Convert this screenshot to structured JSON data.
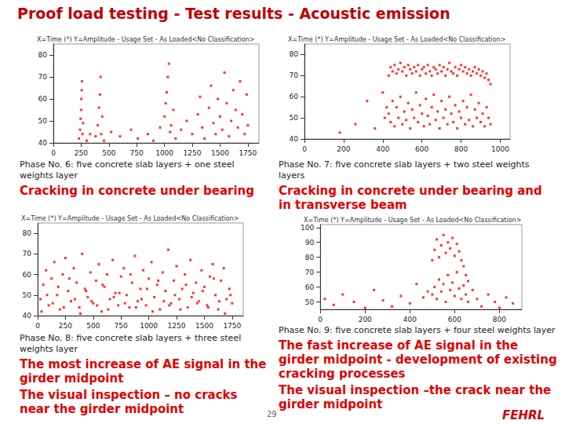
{
  "title": "Proof load testing - Test results - Acoustic emission",
  "page": "29",
  "logo": "FEHRL",
  "chart_data": [
    {
      "type": "scatter",
      "title": "X=Time (*) Y=Amplitude - Usage Set - As Loaded<No Classification>",
      "subtitle": "Phase No. 6: five concrete slab layers + one steel weights layer",
      "annotations": [
        "Cracking in concrete under bearing"
      ],
      "x": [
        230,
        240,
        245,
        250,
        252,
        255,
        258,
        262,
        268,
        300,
        330,
        380,
        400,
        410,
        420,
        425,
        430,
        440,
        455,
        520,
        600,
        700,
        760,
        850,
        900,
        960,
        1000,
        1010,
        1020,
        1030,
        1040,
        1050,
        1060,
        1080,
        1100,
        1150,
        1200,
        1250,
        1300,
        1320,
        1340,
        1360,
        1400,
        1420,
        1440,
        1460,
        1480,
        1500,
        1520,
        1540,
        1560,
        1580,
        1600,
        1620,
        1640,
        1660,
        1680,
        1700,
        1720,
        1740,
        1750
      ],
      "values": [
        42,
        46,
        51,
        55,
        60,
        64,
        68,
        44,
        49,
        41,
        44,
        43,
        48,
        56,
        62,
        70,
        44,
        52,
        41,
        45,
        43,
        46,
        42,
        44,
        41,
        47,
        52,
        58,
        63,
        70,
        76,
        45,
        48,
        55,
        42,
        46,
        50,
        44,
        53,
        61,
        47,
        42,
        56,
        66,
        49,
        44,
        60,
        52,
        46,
        72,
        58,
        43,
        50,
        64,
        55,
        47,
        68,
        53,
        44,
        62,
        48
      ],
      "color": "#ff0000",
      "marker": "square",
      "xlim": [
        0,
        1850
      ],
      "xticks": [
        0,
        250,
        500,
        750,
        1000,
        1250,
        1500,
        1750
      ],
      "ylim": [
        40,
        85
      ],
      "yticks": [
        40,
        50,
        60,
        70,
        80
      ],
      "grid": false
    },
    {
      "type": "scatter",
      "title": "X=Time (*) Y=Amplitude - Usage Set - As Loaded<No Classification>",
      "subtitle": "Phase No. 7: five concrete slab layers + two steel weights layers",
      "annotations": [
        "Cracking in concrete under bearing and in transverse beam"
      ],
      "x": [
        180,
        260,
        320,
        360,
        400,
        410,
        420,
        430,
        430,
        440,
        440,
        450,
        450,
        460,
        460,
        470,
        470,
        480,
        480,
        490,
        490,
        500,
        500,
        510,
        510,
        520,
        520,
        530,
        530,
        540,
        540,
        550,
        550,
        560,
        560,
        570,
        570,
        580,
        580,
        590,
        590,
        600,
        600,
        610,
        610,
        620,
        620,
        630,
        630,
        640,
        640,
        650,
        650,
        660,
        660,
        670,
        670,
        680,
        680,
        690,
        690,
        700,
        700,
        710,
        710,
        720,
        720,
        730,
        730,
        740,
        740,
        750,
        750,
        760,
        760,
        770,
        770,
        780,
        780,
        790,
        790,
        800,
        800,
        810,
        810,
        820,
        820,
        830,
        830,
        840,
        840,
        850,
        850,
        860,
        860,
        870,
        870,
        880,
        880,
        890,
        890,
        900,
        900,
        910,
        910,
        920,
        920,
        930,
        930,
        940,
        940,
        950,
        950
      ],
      "values": [
        43,
        47,
        58,
        45,
        62,
        50,
        55,
        70,
        52,
        74,
        48,
        72,
        58,
        75,
        46,
        71,
        55,
        73,
        50,
        76,
        60,
        72,
        47,
        74,
        53,
        70,
        49,
        75,
        57,
        73,
        45,
        71,
        54,
        74,
        50,
        72,
        62,
        75,
        48,
        70,
        56,
        73,
        52,
        74,
        46,
        71,
        59,
        75,
        51,
        72,
        47,
        70,
        55,
        74,
        61,
        73,
        49,
        71,
        53,
        75,
        45,
        72,
        58,
        74,
        50,
        70,
        54,
        73,
        47,
        76,
        60,
        72,
        52,
        71,
        48,
        74,
        56,
        70,
        45,
        73,
        53,
        75,
        50,
        72,
        58,
        74,
        47,
        71,
        55,
        73,
        49,
        70,
        61,
        72,
        46,
        74,
        54,
        71,
        50,
        73,
        57,
        70,
        48,
        72,
        52,
        69,
        46,
        71,
        55,
        68,
        50,
        66,
        47
      ],
      "color": "#ff0000",
      "marker": "square",
      "xlim": [
        0,
        1050
      ],
      "xticks": [
        0,
        200,
        400,
        600,
        800,
        1000
      ],
      "ylim": [
        40,
        85
      ],
      "yticks": [
        40,
        50,
        60,
        70,
        80
      ],
      "grid": false
    },
    {
      "type": "scatter",
      "title": "X=Time (*) Y=Amplitude - Usage Set - As Loaded<No Classification>",
      "subtitle": "Phase No. 8: five concrete slab layers + three  steel weights layer",
      "annotations": [
        "The most increase of AE signal in the girder midpoint",
        "The visual inspection – no cracks near the girder midpoint"
      ],
      "x": [
        25,
        50,
        75,
        100,
        125,
        150,
        175,
        200,
        225,
        250,
        275,
        300,
        325,
        350,
        375,
        400,
        425,
        450,
        475,
        500,
        525,
        550,
        575,
        600,
        625,
        650,
        675,
        700,
        725,
        750,
        775,
        800,
        825,
        850,
        875,
        900,
        925,
        950,
        975,
        1000,
        1025,
        1050,
        1075,
        1100,
        1125,
        1150,
        1175,
        1200,
        1225,
        1250,
        1275,
        1300,
        1325,
        1350,
        1375,
        1400,
        1425,
        1450,
        1475,
        1500,
        1525,
        1550,
        1575,
        1600,
        1625,
        1650,
        1675,
        1700,
        1725,
        1750,
        35,
        85,
        135,
        185,
        235,
        285,
        335,
        385,
        435,
        485,
        535,
        585,
        635,
        685,
        735,
        785,
        835,
        885,
        935,
        985,
        1035,
        1085,
        1135,
        1185,
        1235,
        1285,
        1335,
        1385,
        1435,
        1485,
        1535,
        1585,
        1635,
        1685,
        1735
      ],
      "values": [
        48,
        55,
        62,
        45,
        58,
        66,
        50,
        43,
        60,
        68,
        52,
        47,
        63,
        56,
        44,
        70,
        53,
        49,
        61,
        46,
        57,
        65,
        42,
        54,
        60,
        48,
        67,
        51,
        45,
        59,
        63,
        50,
        44,
        56,
        69,
        47,
        53,
        62,
        45,
        58,
        66,
        49,
        55,
        43,
        61,
        52,
        72,
        46,
        57,
        64,
        48,
        53,
        60,
        44,
        67,
        51,
        56,
        47,
        62,
        54,
        45,
        59,
        65,
        50,
        43,
        57,
        63,
        48,
        53,
        46,
        42,
        50,
        46,
        54,
        44,
        58,
        48,
        41,
        52,
        47,
        45,
        55,
        43,
        49,
        51,
        46,
        60,
        44,
        48,
        53,
        42,
        57,
        47,
        45,
        50,
        43,
        55,
        49,
        46,
        52,
        44,
        58,
        47,
        41,
        50
      ],
      "color": "#ff0000",
      "marker": "square",
      "xlim": [
        0,
        1850
      ],
      "xticks": [
        0,
        250,
        500,
        750,
        1000,
        1250,
        1500,
        1750
      ],
      "ylim": [
        40,
        85
      ],
      "yticks": [
        40,
        50,
        60,
        70,
        80
      ],
      "grid": false
    },
    {
      "type": "scatter",
      "title": "X=Time (*) Y=Amplitude - Usage Set - As Loaded<No Classification>",
      "subtitle": "Phase No. 9: five concrete slab layers + four steel weights layer",
      "annotations": [
        "The fast increase of AE signal in the girder midpoint - development of existing cracking processes",
        "The visual inspection –the crack near the girder midpoint"
      ],
      "x": [
        20,
        60,
        100,
        150,
        200,
        240,
        280,
        320,
        360,
        400,
        430,
        460,
        480,
        500,
        500,
        510,
        510,
        520,
        520,
        530,
        530,
        540,
        540,
        550,
        550,
        560,
        560,
        570,
        570,
        580,
        580,
        590,
        590,
        600,
        600,
        610,
        610,
        620,
        620,
        630,
        630,
        640,
        640,
        650,
        650,
        660,
        660,
        680,
        700,
        720,
        750,
        780,
        800,
        830,
        860
      ],
      "values": [
        52,
        48,
        55,
        50,
        46,
        58,
        51,
        47,
        54,
        49,
        62,
        53,
        57,
        78,
        55,
        85,
        60,
        92,
        52,
        80,
        65,
        88,
        57,
        95,
        62,
        83,
        50,
        90,
        68,
        86,
        58,
        93,
        63,
        81,
        54,
        89,
        70,
        84,
        59,
        78,
        52,
        74,
        61,
        68,
        55,
        64,
        50,
        58,
        52,
        47,
        55,
        50,
        46,
        53,
        49
      ],
      "color": "#ff0000",
      "marker": "square",
      "xlim": [
        0,
        900
      ],
      "xticks": [
        0,
        200,
        400,
        600,
        800
      ],
      "ylim": [
        45,
        102
      ],
      "yticks": [
        50,
        60,
        70,
        80,
        90,
        100
      ],
      "grid": false
    }
  ]
}
